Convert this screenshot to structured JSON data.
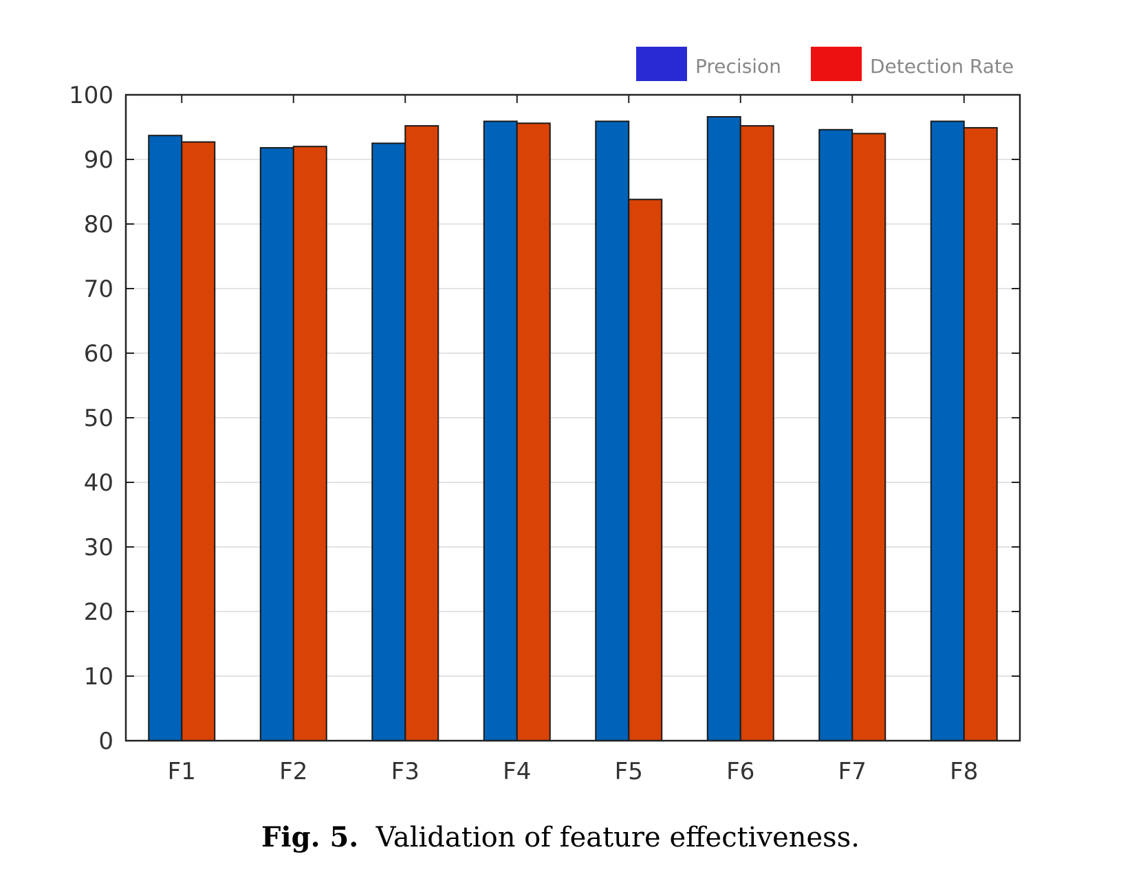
{
  "caption": {
    "label": "Fig. 5.",
    "text": "Validation of feature effectiveness."
  },
  "chart_data": {
    "type": "bar",
    "categories": [
      "F1",
      "F2",
      "F3",
      "F4",
      "F5",
      "F6",
      "F7",
      "F8"
    ],
    "series": [
      {
        "name": "Precision",
        "color": "#0062b8",
        "legend_color": "#2a2ad4",
        "values": [
          93.7,
          91.8,
          92.5,
          95.9,
          95.9,
          96.6,
          94.6,
          95.9
        ]
      },
      {
        "name": "Detection Rate",
        "color": "#d94305",
        "legend_color": "#ee1111",
        "values": [
          92.7,
          92.0,
          95.2,
          95.6,
          83.8,
          95.2,
          94.0,
          94.9
        ]
      }
    ],
    "ylim": [
      0,
      100
    ],
    "yticks": [
      0,
      10,
      20,
      30,
      40,
      50,
      60,
      70,
      80,
      90,
      100
    ],
    "grid": true,
    "legend_position": "top-right, above plot",
    "title": "",
    "xlabel": "",
    "ylabel": ""
  }
}
